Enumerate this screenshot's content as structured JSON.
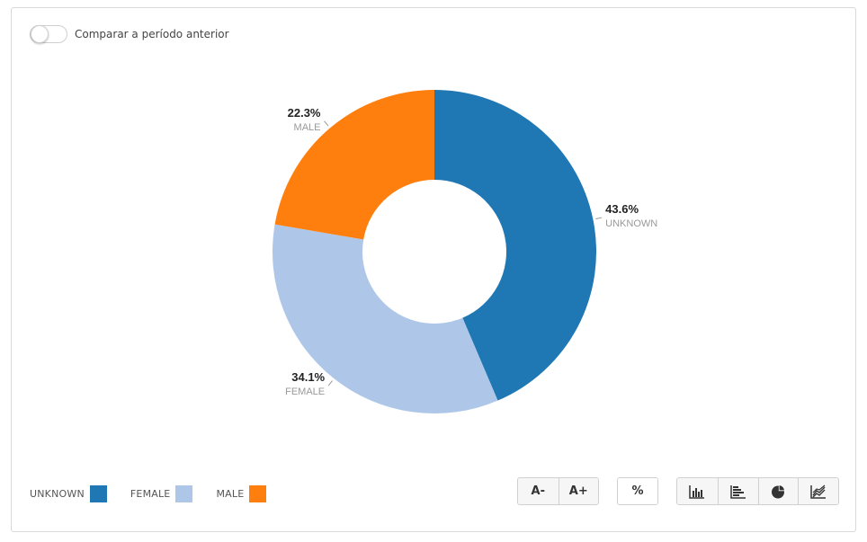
{
  "controls": {
    "compare_label": "Comparar a período anterior",
    "compare_enabled": false
  },
  "chart_data": {
    "type": "pie",
    "donut": true,
    "title": "",
    "categories": [
      "UNKNOWN",
      "FEMALE",
      "MALE"
    ],
    "values": [
      43.6,
      34.1,
      22.3
    ],
    "value_labels": [
      "43.6%",
      "34.1%",
      "22.3%"
    ],
    "colors": [
      "#1f77b4",
      "#aec7e8",
      "#ff7f0e"
    ],
    "legend_position": "bottom-left",
    "start_angle": "top, clockwise"
  },
  "legend": {
    "items": [
      {
        "label": "UNKNOWN",
        "color": "#1f77b4"
      },
      {
        "label": "FEMALE",
        "color": "#aec7e8"
      },
      {
        "label": "MALE",
        "color": "#ff7f0e"
      }
    ]
  },
  "toolbar": {
    "font_decrease_label": "A-",
    "font_increase_label": "A+",
    "percent_label": "%",
    "chart_type_icons": [
      "bar-chart-icon",
      "horizontal-bar-chart-icon",
      "pie-chart-icon",
      "area-chart-icon"
    ]
  }
}
